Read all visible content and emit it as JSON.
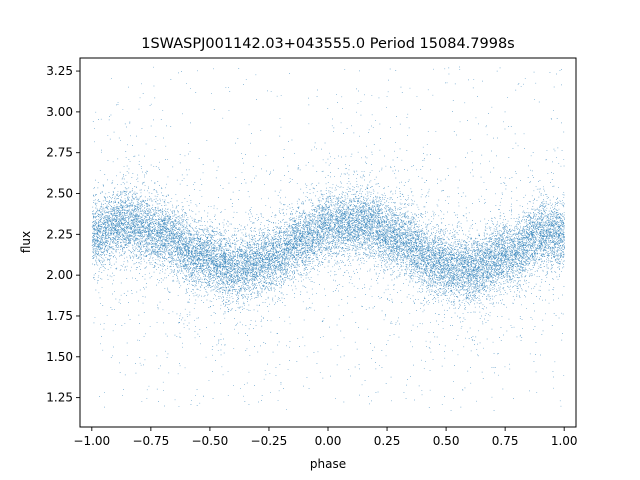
{
  "chart_data": {
    "type": "scatter",
    "title": "1SWASPJ001142.03+043555.0 Period 15084.7998s",
    "xlabel": "phase",
    "ylabel": "flux",
    "xlim": [
      -1.05,
      1.05
    ],
    "ylim": [
      1.07,
      3.33
    ],
    "xticks": [
      -1.0,
      -0.75,
      -0.5,
      -0.25,
      0.0,
      0.25,
      0.5,
      0.75,
      1.0
    ],
    "xtick_labels": [
      "−1.00",
      "−0.75",
      "−0.50",
      "−0.25",
      "0.00",
      "0.25",
      "0.50",
      "0.75",
      "1.00"
    ],
    "yticks": [
      1.25,
      1.5,
      1.75,
      2.0,
      2.25,
      2.5,
      2.75,
      3.0,
      3.25
    ],
    "ytick_labels": [
      "1.25",
      "1.50",
      "1.75",
      "2.00",
      "2.25",
      "2.50",
      "2.75",
      "3.00",
      "3.25"
    ],
    "grid": false,
    "marker_color": "#1f77b4",
    "phase_range": [
      -1.0,
      1.0
    ],
    "series": [
      {
        "points_approx": 30000,
        "trend_phase": [
          -1.0,
          -0.85,
          -0.7,
          -0.55,
          -0.4,
          -0.25,
          -0.1,
          0.0,
          0.15,
          0.3,
          0.45,
          0.6,
          0.75,
          0.9,
          1.0
        ],
        "trend_flux": [
          2.25,
          2.32,
          2.25,
          2.12,
          2.03,
          2.1,
          2.22,
          2.3,
          2.32,
          2.22,
          2.08,
          2.03,
          2.12,
          2.25,
          2.25
        ]
      }
    ]
  }
}
